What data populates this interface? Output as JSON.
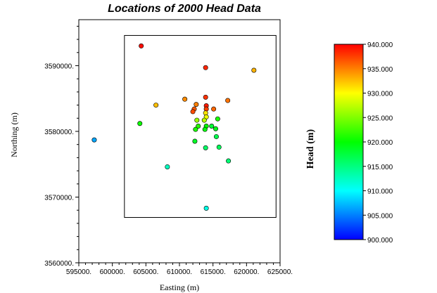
{
  "chart_data": {
    "type": "scatter",
    "title": "Locations of 2000 Head Data",
    "xlabel": "Easting (m)",
    "ylabel": "Northing (m)",
    "xlim": [
      595000,
      625000
    ],
    "ylim": [
      3560000,
      3597000
    ],
    "xticks": [
      595000,
      600000,
      605000,
      610000,
      615000,
      620000,
      625000
    ],
    "xtick_labels": [
      "595000.",
      "600000.",
      "605000.",
      "610000.",
      "615000.",
      "620000.",
      "625000."
    ],
    "yticks": [
      3560000,
      3570000,
      3580000,
      3590000
    ],
    "ytick_labels": [
      "3560000.",
      "3570000.",
      "3580000.",
      "3590000."
    ],
    "grid": false,
    "inner_box": {
      "x": [
        601800,
        624400
      ],
      "y": [
        3566900,
        3594600
      ]
    },
    "colorbar": {
      "label": "Head (m)",
      "min": 900,
      "max": 940,
      "ticks": [
        940,
        935,
        930,
        925,
        920,
        915,
        910,
        905,
        900
      ],
      "tick_labels": [
        "940.000",
        "935.000",
        "930.000",
        "925.000",
        "920.000",
        "915.000",
        "910.000",
        "905.000",
        "900.000"
      ],
      "colors": [
        "#0000ff",
        "#00ffff",
        "#00ff00",
        "#ffff00",
        "#ff0000"
      ]
    },
    "points": [
      {
        "x": 597300,
        "y": 3578700,
        "head": 906.5
      },
      {
        "x": 604300,
        "y": 3593000,
        "head": 939.5
      },
      {
        "x": 613900,
        "y": 3589700,
        "head": 938.5
      },
      {
        "x": 621100,
        "y": 3589300,
        "head": 933.0
      },
      {
        "x": 610800,
        "y": 3584900,
        "head": 934.5
      },
      {
        "x": 606500,
        "y": 3584000,
        "head": 932.5
      },
      {
        "x": 613900,
        "y": 3585200,
        "head": 938.0
      },
      {
        "x": 617200,
        "y": 3584700,
        "head": 935.5
      },
      {
        "x": 612500,
        "y": 3584100,
        "head": 935.0
      },
      {
        "x": 612200,
        "y": 3583400,
        "head": 936.5
      },
      {
        "x": 612000,
        "y": 3583000,
        "head": 937.0
      },
      {
        "x": 614000,
        "y": 3583900,
        "head": 939.0
      },
      {
        "x": 614000,
        "y": 3583400,
        "head": 937.5
      },
      {
        "x": 615100,
        "y": 3583400,
        "head": 936.0
      },
      {
        "x": 613900,
        "y": 3582800,
        "head": 931.0
      },
      {
        "x": 614000,
        "y": 3582200,
        "head": 929.5
      },
      {
        "x": 612600,
        "y": 3581700,
        "head": 926.0
      },
      {
        "x": 613700,
        "y": 3581700,
        "head": 927.0
      },
      {
        "x": 615700,
        "y": 3581900,
        "head": 921.0
      },
      {
        "x": 604100,
        "y": 3581200,
        "head": 920.5
      },
      {
        "x": 612800,
        "y": 3580800,
        "head": 921.5
      },
      {
        "x": 614000,
        "y": 3580800,
        "head": 920.0
      },
      {
        "x": 614800,
        "y": 3580800,
        "head": 918.0
      },
      {
        "x": 612400,
        "y": 3580300,
        "head": 921.0
      },
      {
        "x": 613800,
        "y": 3580300,
        "head": 919.5
      },
      {
        "x": 615400,
        "y": 3580400,
        "head": 919.0
      },
      {
        "x": 615500,
        "y": 3579200,
        "head": 917.0
      },
      {
        "x": 612300,
        "y": 3578500,
        "head": 918.5
      },
      {
        "x": 613900,
        "y": 3577500,
        "head": 916.0
      },
      {
        "x": 615900,
        "y": 3577600,
        "head": 916.5
      },
      {
        "x": 617300,
        "y": 3575500,
        "head": 915.5
      },
      {
        "x": 608200,
        "y": 3574600,
        "head": 912.5
      },
      {
        "x": 614000,
        "y": 3568300,
        "head": 911.0
      }
    ]
  }
}
